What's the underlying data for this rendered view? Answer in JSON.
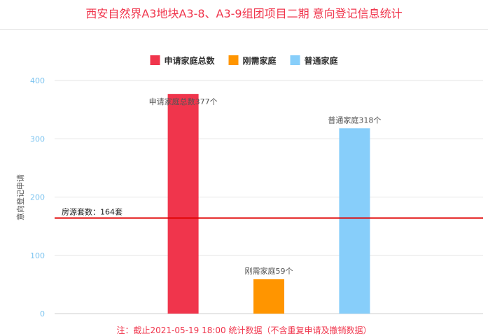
{
  "header": {
    "title": "西安自然界A3地块A3-8、A3-9组团项目二期 意向登记信息统计"
  },
  "footer": {
    "note": "注：截止2021-05-19 18:00 统计数据（不含重复申请及撤销数据）"
  },
  "chart_data": {
    "type": "bar",
    "ylabel": "意向登记申请",
    "ylim": [
      0,
      400
    ],
    "yticks": [
      0,
      100,
      200,
      300,
      400
    ],
    "grid": true,
    "legend_position": "top-center",
    "series": [
      {
        "name": "申请家庭总数",
        "value": 377,
        "label": "申请家庭总数377个",
        "color": "#f0354c"
      },
      {
        "name": "刚需家庭",
        "value": 59,
        "label": "刚需家庭59个",
        "color": "#ff9500"
      },
      {
        "name": "普通家庭",
        "value": 318,
        "label": "普通家庭318个",
        "color": "#87cefa"
      }
    ],
    "reference_line": {
      "value": 164,
      "label": "房源套数：164套",
      "color": "#e00000"
    }
  }
}
